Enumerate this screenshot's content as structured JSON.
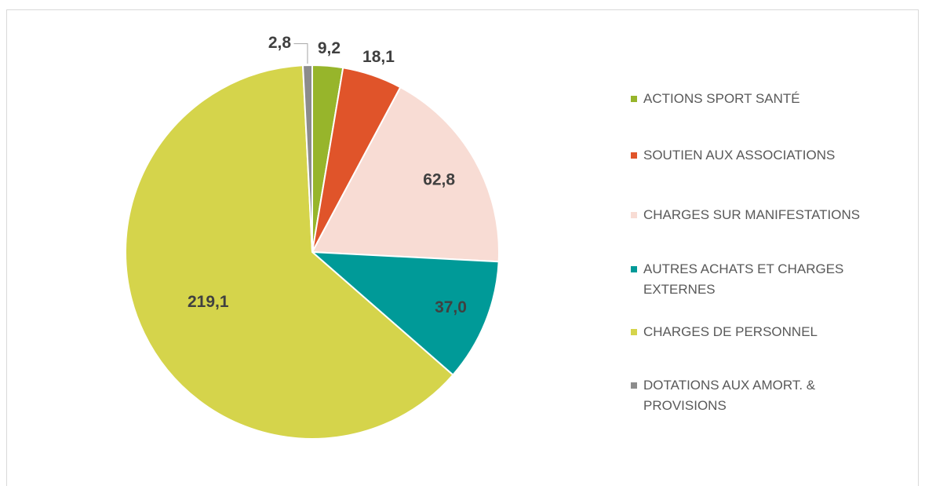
{
  "chart_data": {
    "type": "pie",
    "categories": [
      "ACTIONS SPORT SANTÉ",
      "SOUTIEN AUX ASSOCIATIONS",
      "CHARGES SUR MANIFESTATIONS",
      "AUTRES ACHATS ET CHARGES EXTERNES",
      "CHARGES DE PERSONNEL",
      "DOTATIONS AUX AMORT. & PROVISIONS"
    ],
    "values": [
      9.2,
      18.1,
      62.8,
      37.0,
      219.1,
      2.8
    ],
    "value_labels": [
      "9,2",
      "18,1",
      "62,8",
      "37,0",
      "219,1",
      "2,8"
    ],
    "colors": [
      "#97b52b",
      "#e0542a",
      "#f8dcd4",
      "#009a98",
      "#d5d44b",
      "#8c8c8c"
    ],
    "legend": "right"
  }
}
